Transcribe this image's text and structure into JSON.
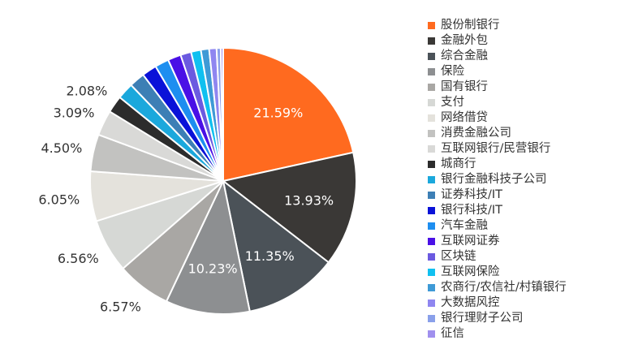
{
  "chart_data": {
    "type": "pie",
    "title": "",
    "legend_position": "right",
    "slices": [
      {
        "name": "股份制银行",
        "value": 21.59,
        "label": "21.59%",
        "color": "#ff6a1f"
      },
      {
        "name": "金融外包",
        "value": 13.93,
        "label": "13.93%",
        "color": "#3a3836"
      },
      {
        "name": "综合金融",
        "value": 11.35,
        "label": "11.35%",
        "color": "#4b5258"
      },
      {
        "name": "保险",
        "value": 10.23,
        "label": "10.23%",
        "color": "#8d8f91"
      },
      {
        "name": "国有银行",
        "value": 6.57,
        "label": "6.57%",
        "color": "#a9a7a4"
      },
      {
        "name": "支付",
        "value": 6.56,
        "label": "6.56%",
        "color": "#d6d8d5"
      },
      {
        "name": "网络借贷",
        "value": 6.05,
        "label": "6.05%",
        "color": "#e4e2dc"
      },
      {
        "name": "消费金融公司",
        "value": 4.5,
        "label": "4.50%",
        "color": "#c2c2c0"
      },
      {
        "name": "互联网银行/民营银行",
        "value": 3.09,
        "label": "3.09%",
        "color": "#d9d9d7"
      },
      {
        "name": "城商行",
        "value": 2.08,
        "label": "2.08%",
        "color": "#2c2c2c"
      },
      {
        "name": "银行金融科技子公司",
        "value": 2.0,
        "label": "",
        "color": "#1ba8dc"
      },
      {
        "name": "证券科技/IT",
        "value": 1.9,
        "label": "",
        "color": "#3d7fb5"
      },
      {
        "name": "银行科技/IT",
        "value": 1.8,
        "label": "",
        "color": "#0a12d8"
      },
      {
        "name": "汽车金融",
        "value": 1.7,
        "label": "",
        "color": "#1e8ef0"
      },
      {
        "name": "互联网证券",
        "value": 1.6,
        "label": "",
        "color": "#4a10e6"
      },
      {
        "name": "区块链",
        "value": 1.3,
        "label": "",
        "color": "#6b5ae0"
      },
      {
        "name": "互联网保险",
        "value": 1.2,
        "label": "",
        "color": "#10c0f0"
      },
      {
        "name": "农商行/农信社/村镇银行",
        "value": 1.0,
        "label": "",
        "color": "#3e9ad6"
      },
      {
        "name": "大数据风控",
        "value": 0.9,
        "label": "",
        "color": "#8f86f0"
      },
      {
        "name": "银行理财子公司",
        "value": 0.5,
        "label": "",
        "color": "#8aa0ea"
      },
      {
        "name": "征信",
        "value": 0.3,
        "label": "",
        "color": "#a090ee"
      }
    ]
  }
}
